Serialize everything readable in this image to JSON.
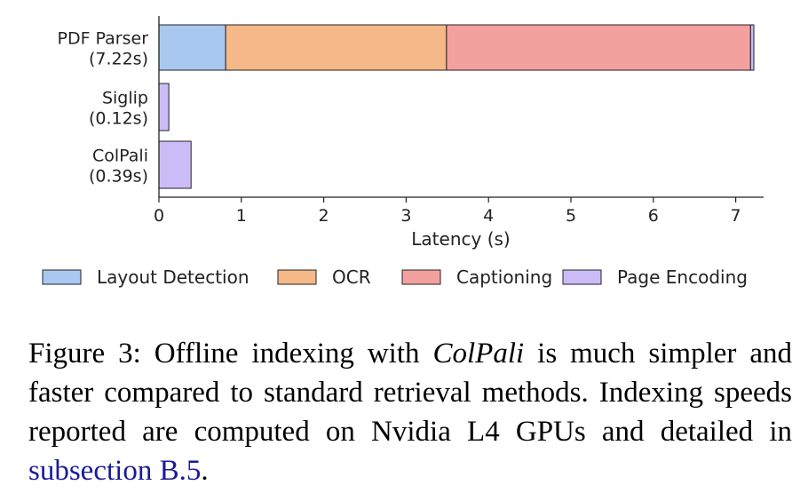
{
  "chart_data": {
    "type": "bar",
    "orientation": "horizontal",
    "stacked": true,
    "xlabel": "Latency (s)",
    "xlim": [
      0,
      7.3
    ],
    "xticks": [
      0,
      1,
      2,
      3,
      4,
      5,
      6,
      7
    ],
    "categories": [
      {
        "name": "PDF Parser",
        "total_label": "(7.22s)"
      },
      {
        "name": "Siglip",
        "total_label": "(0.12s)"
      },
      {
        "name": "ColPali",
        "total_label": "(0.39s)"
      }
    ],
    "series": [
      {
        "name": "Layout Detection",
        "color": "#a9c8ef",
        "values": [
          0.81,
          0,
          0
        ]
      },
      {
        "name": "OCR",
        "color": "#f5b889",
        "values": [
          2.68,
          0,
          0
        ]
      },
      {
        "name": "Captioning",
        "color": "#f3a19f",
        "values": [
          3.69,
          0,
          0
        ]
      },
      {
        "name": "Page Encoding",
        "color": "#cbbcf8",
        "values": [
          0.04,
          0.12,
          0.39
        ]
      }
    ],
    "legend_position": "bottom",
    "grid": false
  },
  "caption": {
    "prefix": "Figure 3: Offline indexing with ",
    "italic": "ColPali",
    "middle": " is much simpler and faster compared to standard retrieval methods. Indexing speeds reported are computed on Nvidia L4 GPUs and detailed in ",
    "link": "subsection B.5",
    "suffix": "."
  }
}
